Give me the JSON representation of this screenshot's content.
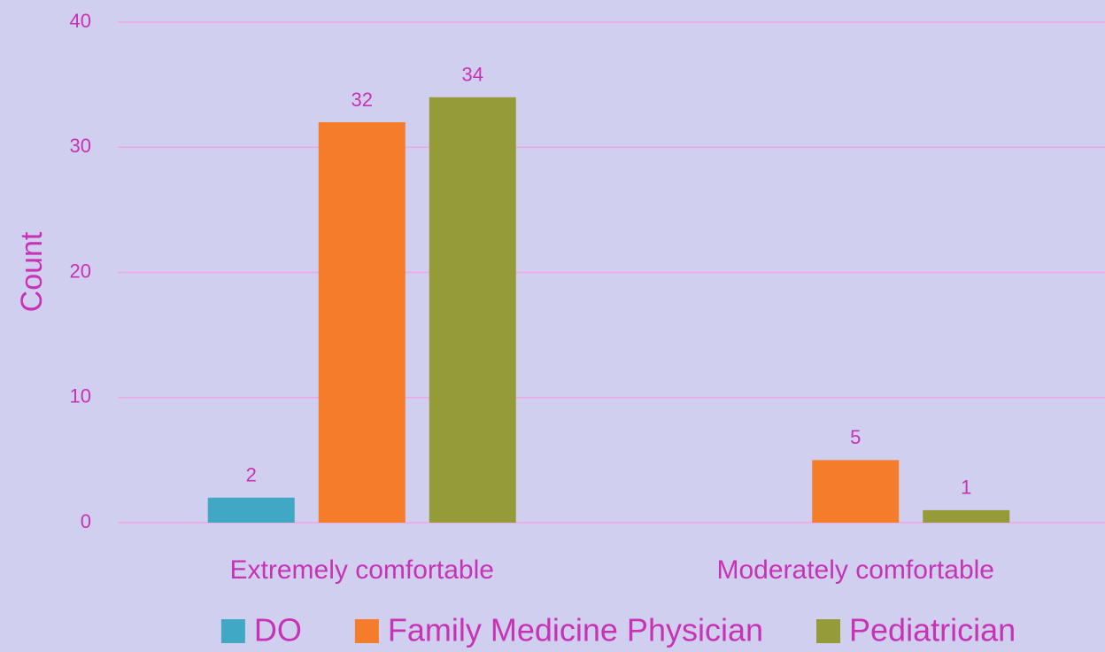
{
  "chart_data": {
    "type": "bar",
    "y_label": "Count",
    "categories": [
      "Extremely comfortable",
      "Moderately comfortable"
    ],
    "series": [
      {
        "name": "DO",
        "color": "#41a8c4",
        "values": [
          2,
          null
        ]
      },
      {
        "name": "Family Medicine Physician",
        "color": "#f47c2a",
        "values": [
          32,
          5
        ]
      },
      {
        "name": "Pediatrician",
        "color": "#969b3a",
        "values": [
          34,
          1
        ]
      }
    ],
    "ylim": [
      0,
      40
    ],
    "yticks": [
      0,
      10,
      20,
      30,
      40
    ],
    "grid": true,
    "legend": "bottom"
  }
}
